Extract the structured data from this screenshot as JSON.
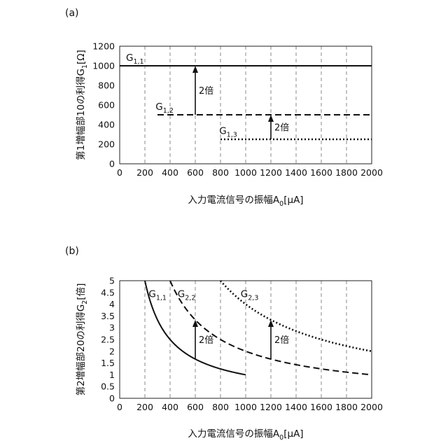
{
  "chart_data": [
    {
      "type": "line",
      "panel": "(a)",
      "xlabel": "入力電流信号の振幅A",
      "xlabel_sub": "0",
      "xlabel_unit": "[μA]",
      "ylabel": "第1増幅部10の利得G",
      "ylabel_sub": "1",
      "ylabel_unit": "[Ω]",
      "xlim": [
        0,
        2000
      ],
      "ylim": [
        0,
        1200
      ],
      "xticks": [
        "0",
        "200",
        "400",
        "600",
        "800",
        "1000",
        "1200",
        "1400",
        "1600",
        "1800",
        "2000"
      ],
      "yticks": [
        "0",
        "200",
        "400",
        "600",
        "800",
        "1000",
        "1200"
      ],
      "grid": "vertical-dashed",
      "series": [
        {
          "name": "G",
          "sub": "1,1",
          "style": "solid",
          "x": [
            0,
            2000
          ],
          "y": [
            1000,
            1000
          ],
          "label_at": [
            50,
            1050
          ]
        },
        {
          "name": "G",
          "sub": "1,2",
          "style": "dashed",
          "x": [
            300,
            2000
          ],
          "y": [
            500,
            500
          ],
          "label_at": [
            285,
            550
          ]
        },
        {
          "name": "G",
          "sub": "1,3",
          "style": "dotted",
          "x": [
            800,
            2000
          ],
          "y": [
            250,
            250
          ],
          "label_at": [
            790,
            305
          ]
        }
      ],
      "annotations": [
        {
          "text": "2倍",
          "x": 600,
          "y_from": 500,
          "y_to": 1000
        },
        {
          "text": "2倍",
          "x": 1200,
          "y_from": 250,
          "y_to": 500
        }
      ]
    },
    {
      "type": "line",
      "panel": "(b)",
      "xlabel": "入力電流信号の振幅A",
      "xlabel_sub": "0",
      "xlabel_unit": "[μA]",
      "ylabel": "第2増幅部20の利得G",
      "ylabel_sub": "2",
      "ylabel_unit": "[倍]",
      "xlim": [
        0,
        2000
      ],
      "ylim": [
        0,
        5
      ],
      "xticks": [
        "0",
        "200",
        "400",
        "600",
        "800",
        "1000",
        "1200",
        "1400",
        "1600",
        "1800",
        "2000"
      ],
      "yticks": [
        "0",
        "0.5",
        "1",
        "1.5",
        "2",
        "2.5",
        "3",
        "3.5",
        "4",
        "4.5",
        "5"
      ],
      "grid": "vertical-dashed",
      "series": [
        {
          "name": "G",
          "sub": "1,1",
          "style": "solid",
          "k": 1000,
          "x_range": [
            200,
            1000
          ],
          "label_at": [
            230,
            4.3
          ]
        },
        {
          "name": "G",
          "sub": "2,2",
          "style": "dashed",
          "k": 2000,
          "x_range": [
            400,
            2000
          ],
          "label_at": [
            460,
            4.3
          ]
        },
        {
          "name": "G",
          "sub": "2,3",
          "style": "dotted",
          "k": 4000,
          "x_range": [
            800,
            2000
          ],
          "label_at": [
            960,
            4.3
          ]
        }
      ],
      "annotations": [
        {
          "text": "2倍",
          "x": 600,
          "y_from": 1.667,
          "y_to": 3.333
        },
        {
          "text": "2倍",
          "x": 1200,
          "y_from": 1.667,
          "y_to": 3.333
        }
      ]
    }
  ]
}
